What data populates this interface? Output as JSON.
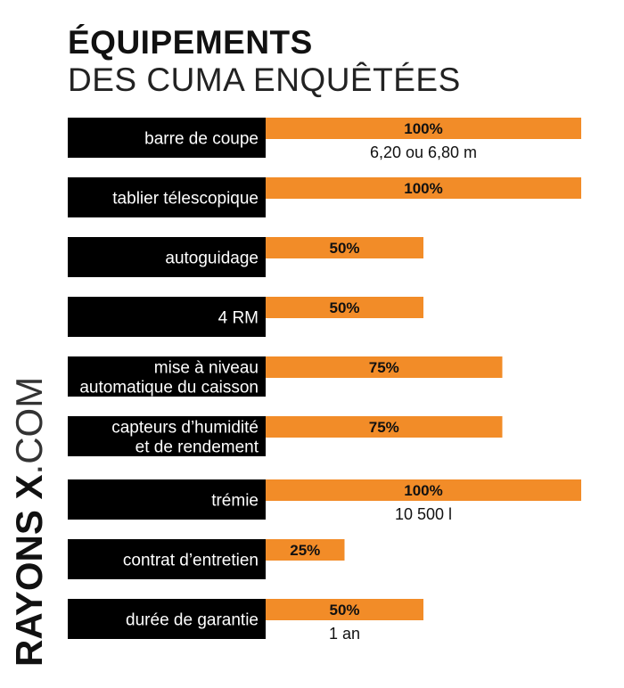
{
  "title": "ÉQUIPEMENTS",
  "subtitle": "DES CUMA ENQUÊTÉES",
  "watermark": {
    "brand": "RAYONS X",
    "suffix": ".COM"
  },
  "colors": {
    "label_bg": "#000000",
    "bar": "#f28c28",
    "label_text": "#ffffff",
    "value_text": "#111111"
  },
  "chart_data": {
    "type": "bar",
    "orientation": "horizontal",
    "value_suffix": "%",
    "xlim": [
      0,
      100
    ],
    "categories": [
      [
        "barre de coupe"
      ],
      [
        "tablier télescopique"
      ],
      [
        "autoguidage"
      ],
      [
        "4 RM"
      ],
      [
        "mise à niveau",
        "automatique du caisson"
      ],
      [
        "capteurs d’humidité",
        "et de rendement"
      ],
      [
        "trémie"
      ],
      [
        "contrat d’entretien"
      ],
      [
        "durée de garantie"
      ]
    ],
    "values": [
      100,
      100,
      50,
      50,
      75,
      75,
      100,
      25,
      50
    ],
    "notes": [
      "6,20 ou 6,80 m",
      "",
      "",
      "",
      "",
      "",
      "10 500 l",
      "",
      "1 an"
    ]
  }
}
